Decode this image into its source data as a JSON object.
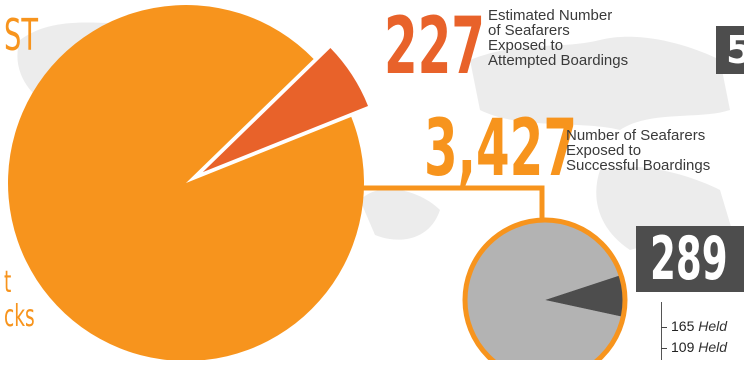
{
  "colors": {
    "orange": "#f7941d",
    "red_orange": "#e8622a",
    "gray": "#b3b3b3",
    "dark_gray": "#4d4d4d",
    "connector": "#f7941d",
    "map_bg": "#ececec"
  },
  "left_edge": {
    "line1": "ST",
    "line2": "t",
    "line3": "cks"
  },
  "top_right_box": "5",
  "attempted": {
    "number": "227",
    "label_lines": [
      "Estimated Number",
      "of Seafarers",
      "Exposed to",
      "Attempted Boardings"
    ]
  },
  "successful": {
    "number": "3,427",
    "label_lines": [
      "Number of Seafarers",
      "Exposed to",
      "Successful Boardings"
    ]
  },
  "hostage_box": "289",
  "breakdown": [
    {
      "number": "165",
      "label": "Held"
    },
    {
      "number": "109",
      "label": "Held"
    }
  ],
  "chart_data": [
    {
      "type": "pie",
      "slices": [
        {
          "value": 3427,
          "color": "#f7941d"
        },
        {
          "value": 227,
          "color": "#e8622a",
          "exploded": true
        }
      ]
    },
    {
      "type": "pie",
      "slices": [
        {
          "value": 3138,
          "color": "#b3b3b3"
        },
        {
          "value": 289,
          "color": "#4d4d4d"
        }
      ]
    }
  ]
}
